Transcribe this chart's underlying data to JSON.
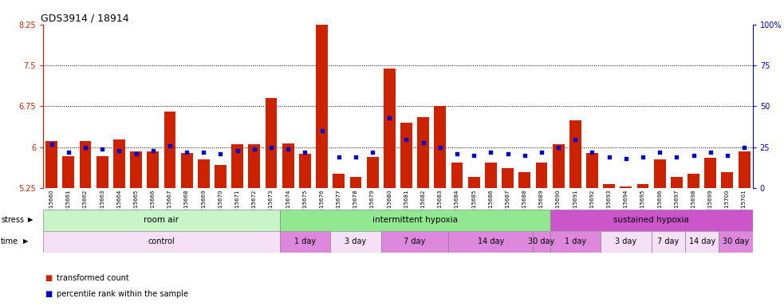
{
  "title": "GDS3914 / 18914",
  "ylim_left": [
    5.25,
    8.25
  ],
  "ylim_right": [
    0,
    100
  ],
  "yticks_left": [
    5.25,
    6.0,
    6.75,
    7.5,
    8.25
  ],
  "ytick_labels_left": [
    "5.25",
    "6",
    "6.75",
    "7.5",
    "8.25"
  ],
  "yticks_right": [
    0,
    25,
    50,
    75,
    100
  ],
  "ytick_labels_right": [
    "0",
    "25",
    "50",
    "75",
    "100%"
  ],
  "hlines": [
    6.0,
    6.75,
    7.5
  ],
  "samples": [
    "GSM215660",
    "GSM215661",
    "GSM215662",
    "GSM215663",
    "GSM215664",
    "GSM215665",
    "GSM215666",
    "GSM215667",
    "GSM215668",
    "GSM215669",
    "GSM215670",
    "GSM215671",
    "GSM215672",
    "GSM215673",
    "GSM215674",
    "GSM215675",
    "GSM215676",
    "GSM215677",
    "GSM215678",
    "GSM215679",
    "GSM215680",
    "GSM215681",
    "GSM215682",
    "GSM215683",
    "GSM215684",
    "GSM215685",
    "GSM215686",
    "GSM215687",
    "GSM215688",
    "GSM215689",
    "GSM215690",
    "GSM215691",
    "GSM215692",
    "GSM215693",
    "GSM215694",
    "GSM215695",
    "GSM215696",
    "GSM215697",
    "GSM215698",
    "GSM215699",
    "GSM215700",
    "GSM215701"
  ],
  "red_values": [
    6.12,
    5.83,
    6.12,
    5.83,
    6.14,
    5.92,
    5.92,
    6.65,
    5.9,
    5.78,
    5.68,
    6.05,
    6.05,
    6.9,
    6.07,
    5.88,
    8.45,
    5.52,
    5.45,
    5.82,
    7.45,
    6.45,
    6.55,
    6.75,
    5.72,
    5.45,
    5.72,
    5.62,
    5.55,
    5.72,
    6.05,
    6.5,
    5.9,
    5.33,
    5.28,
    5.33,
    5.78,
    5.45,
    5.52,
    5.8,
    5.55,
    5.92
  ],
  "blue_values": [
    27,
    22,
    25,
    24,
    23,
    21,
    23,
    26,
    22,
    22,
    21,
    23,
    24,
    25,
    24,
    22,
    35,
    19,
    19,
    22,
    43,
    30,
    28,
    25,
    21,
    20,
    22,
    21,
    20,
    22,
    25,
    30,
    22,
    19,
    18,
    19,
    22,
    19,
    20,
    22,
    20,
    25
  ],
  "stress_groups": [
    {
      "label": "room air",
      "start": 0,
      "end": 14,
      "color": "#c8f5c8"
    },
    {
      "label": "intermittent hypoxia",
      "start": 14,
      "end": 30,
      "color": "#90e890"
    },
    {
      "label": "sustained hypoxia",
      "start": 30,
      "end": 42,
      "color": "#cc55cc"
    }
  ],
  "time_groups": [
    {
      "label": "control",
      "start": 0,
      "end": 14,
      "color": "#f5e0f5"
    },
    {
      "label": "1 day",
      "start": 14,
      "end": 17,
      "color": "#dd88dd"
    },
    {
      "label": "3 day",
      "start": 17,
      "end": 20,
      "color": "#f5e0f5"
    },
    {
      "label": "7 day",
      "start": 20,
      "end": 24,
      "color": "#dd88dd"
    },
    {
      "label": "14 day",
      "start": 24,
      "end": 29,
      "color": "#dd88dd"
    },
    {
      "label": "30 day",
      "start": 29,
      "end": 30,
      "color": "#dd88dd"
    },
    {
      "label": "1 day",
      "start": 30,
      "end": 33,
      "color": "#dd88dd"
    },
    {
      "label": "3 day",
      "start": 33,
      "end": 36,
      "color": "#f5e0f5"
    },
    {
      "label": "7 day",
      "start": 36,
      "end": 38,
      "color": "#f5e0f5"
    },
    {
      "label": "14 day",
      "start": 38,
      "end": 40,
      "color": "#f5e0f5"
    },
    {
      "label": "30 day",
      "start": 40,
      "end": 42,
      "color": "#dd88dd"
    }
  ],
  "bar_color": "#cc2200",
  "dot_color": "#0000cc",
  "title_color": "#333333",
  "left_axis_color": "#cc2200",
  "right_axis_color": "#0000cc"
}
